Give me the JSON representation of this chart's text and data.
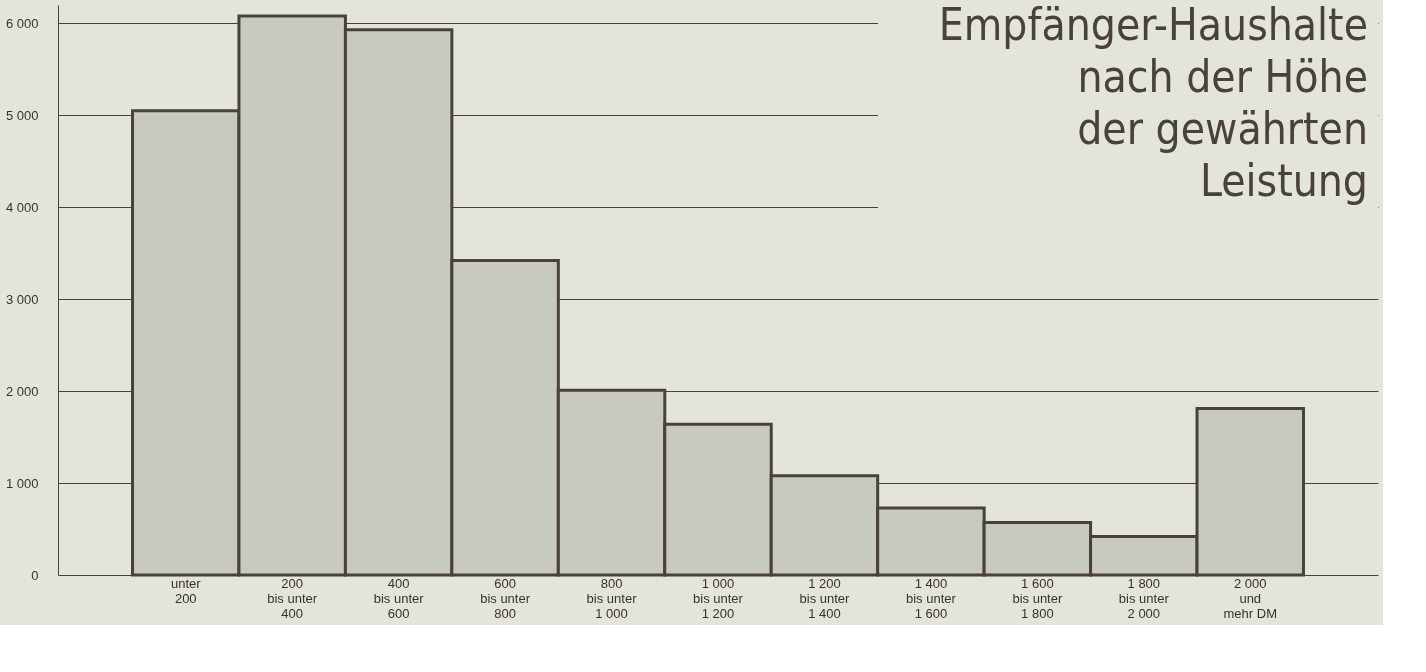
{
  "chart_data": {
    "type": "bar",
    "title": "Empfänger-Haushalte\nnach der Höhe\nder gewährten\nLeistung",
    "categories": [
      "unter\n200",
      "200\nbis unter\n400",
      "400\nbis unter\n600",
      "600\nbis unter\n800",
      "800\nbis unter\n1 000",
      "1 000\nbis unter\n1 200",
      "1 200\nbis unter\n1 400",
      "1 400\nbis unter\n1 600",
      "1 600\nbis unter\n1 800",
      "1 800\nbis unter\n2 000",
      "2 000\nund\nmehr DM"
    ],
    "values": [
      5050,
      6080,
      5930,
      3420,
      2010,
      1640,
      1080,
      730,
      570,
      420,
      1810
    ],
    "color": "#c8cac2",
    "ylim": [
      0,
      6200
    ],
    "yticks": [
      {
        "value": 0,
        "label": "0"
      },
      {
        "value": 1000,
        "label": "1 000"
      },
      {
        "value": 2000,
        "label": "2 000"
      },
      {
        "value": 3000,
        "label": "3 000"
      },
      {
        "value": 4000,
        "label": "4 000"
      },
      {
        "value": 5000,
        "label": "5 000"
      },
      {
        "value": 6000,
        "label": "6 000"
      }
    ],
    "grid": "y"
  }
}
